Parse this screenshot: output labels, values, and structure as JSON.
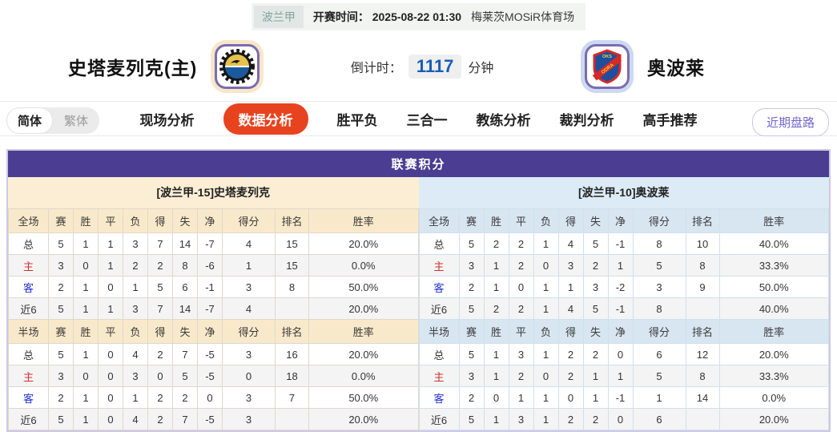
{
  "colors": {
    "header_purple": "#4b3e92",
    "active_tab_red": "#e8431f",
    "countdown_blue": "#1a5cb8",
    "home_theme_cream": "#fbeed5",
    "away_theme_blue": "#dcebf6",
    "home_row_label_red": "#d03030",
    "away_row_label_blue": "#2433cc",
    "recent_btn_purple": "#7466cb"
  },
  "top_bar": {
    "league": "波兰甲",
    "kickoff_label": "开赛时间：",
    "kickoff_time": "2025-08-22 01:30",
    "venue": "梅莱茨MOSiR体育场"
  },
  "match_header": {
    "home_team": "史塔麦列克(主)",
    "away_team": "奥波莱",
    "countdown_label": "倒计时：",
    "countdown_value": "1117",
    "countdown_unit": "分钟"
  },
  "nav": {
    "lang_toggle": [
      "简体",
      "繁体"
    ],
    "active_lang": "简体",
    "tabs": [
      {
        "label": "现场分析",
        "active": false
      },
      {
        "label": "数据分析",
        "active": true
      },
      {
        "label": "胜平负",
        "active": false
      },
      {
        "label": "三合一",
        "active": false
      },
      {
        "label": "教练分析",
        "active": false
      },
      {
        "label": "裁判分析",
        "active": false
      },
      {
        "label": "高手推荐",
        "active": false
      }
    ],
    "recent_button": "近期盘路"
  },
  "league_table": {
    "title": "联赛积分",
    "columns": [
      "赛",
      "胜",
      "平",
      "负",
      "得",
      "失",
      "净",
      "得分",
      "排名",
      "胜率"
    ],
    "sections": [
      {
        "side": "home",
        "team_title": "[波兰甲-15]史塔麦列克",
        "parts": [
          {
            "label": "全场",
            "rows": [
              {
                "name": "总",
                "values": [
                  "5",
                  "1",
                  "1",
                  "3",
                  "7",
                  "14",
                  "-7",
                  "4",
                  "15",
                  "20.0%"
                ]
              },
              {
                "name": "主",
                "values": [
                  "3",
                  "0",
                  "1",
                  "2",
                  "2",
                  "8",
                  "-6",
                  "1",
                  "15",
                  "0.0%"
                ]
              },
              {
                "name": "客",
                "values": [
                  "2",
                  "1",
                  "0",
                  "1",
                  "5",
                  "6",
                  "-1",
                  "3",
                  "8",
                  "50.0%"
                ]
              },
              {
                "name": "近6",
                "values": [
                  "5",
                  "1",
                  "1",
                  "3",
                  "7",
                  "14",
                  "-7",
                  "4",
                  "",
                  "20.0%"
                ]
              }
            ]
          },
          {
            "label": "半场",
            "rows": [
              {
                "name": "总",
                "values": [
                  "5",
                  "1",
                  "0",
                  "4",
                  "2",
                  "7",
                  "-5",
                  "3",
                  "16",
                  "20.0%"
                ]
              },
              {
                "name": "主",
                "values": [
                  "3",
                  "0",
                  "0",
                  "3",
                  "0",
                  "5",
                  "-5",
                  "0",
                  "18",
                  "0.0%"
                ]
              },
              {
                "name": "客",
                "values": [
                  "2",
                  "1",
                  "0",
                  "1",
                  "2",
                  "2",
                  "0",
                  "3",
                  "7",
                  "50.0%"
                ]
              },
              {
                "name": "近6",
                "values": [
                  "5",
                  "1",
                  "0",
                  "4",
                  "2",
                  "7",
                  "-5",
                  "3",
                  "",
                  "20.0%"
                ]
              }
            ]
          }
        ]
      },
      {
        "side": "away",
        "team_title": "[波兰甲-10]奥波莱",
        "parts": [
          {
            "label": "全场",
            "rows": [
              {
                "name": "总",
                "values": [
                  "5",
                  "2",
                  "2",
                  "1",
                  "4",
                  "5",
                  "-1",
                  "8",
                  "10",
                  "40.0%"
                ]
              },
              {
                "name": "主",
                "values": [
                  "3",
                  "1",
                  "2",
                  "0",
                  "3",
                  "2",
                  "1",
                  "5",
                  "8",
                  "33.3%"
                ]
              },
              {
                "name": "客",
                "values": [
                  "2",
                  "1",
                  "0",
                  "1",
                  "1",
                  "3",
                  "-2",
                  "3",
                  "9",
                  "50.0%"
                ]
              },
              {
                "name": "近6",
                "values": [
                  "5",
                  "2",
                  "2",
                  "1",
                  "4",
                  "5",
                  "-1",
                  "8",
                  "",
                  "40.0%"
                ]
              }
            ]
          },
          {
            "label": "半场",
            "rows": [
              {
                "name": "总",
                "values": [
                  "5",
                  "1",
                  "3",
                  "1",
                  "2",
                  "2",
                  "0",
                  "6",
                  "12",
                  "20.0%"
                ]
              },
              {
                "name": "主",
                "values": [
                  "3",
                  "1",
                  "2",
                  "0",
                  "2",
                  "1",
                  "1",
                  "5",
                  "8",
                  "33.3%"
                ]
              },
              {
                "name": "客",
                "values": [
                  "2",
                  "0",
                  "1",
                  "1",
                  "0",
                  "1",
                  "-1",
                  "1",
                  "14",
                  "0.0%"
                ]
              },
              {
                "name": "近6",
                "values": [
                  "5",
                  "1",
                  "3",
                  "1",
                  "2",
                  "2",
                  "0",
                  "6",
                  "",
                  "20.0%"
                ]
              }
            ]
          }
        ]
      }
    ]
  }
}
